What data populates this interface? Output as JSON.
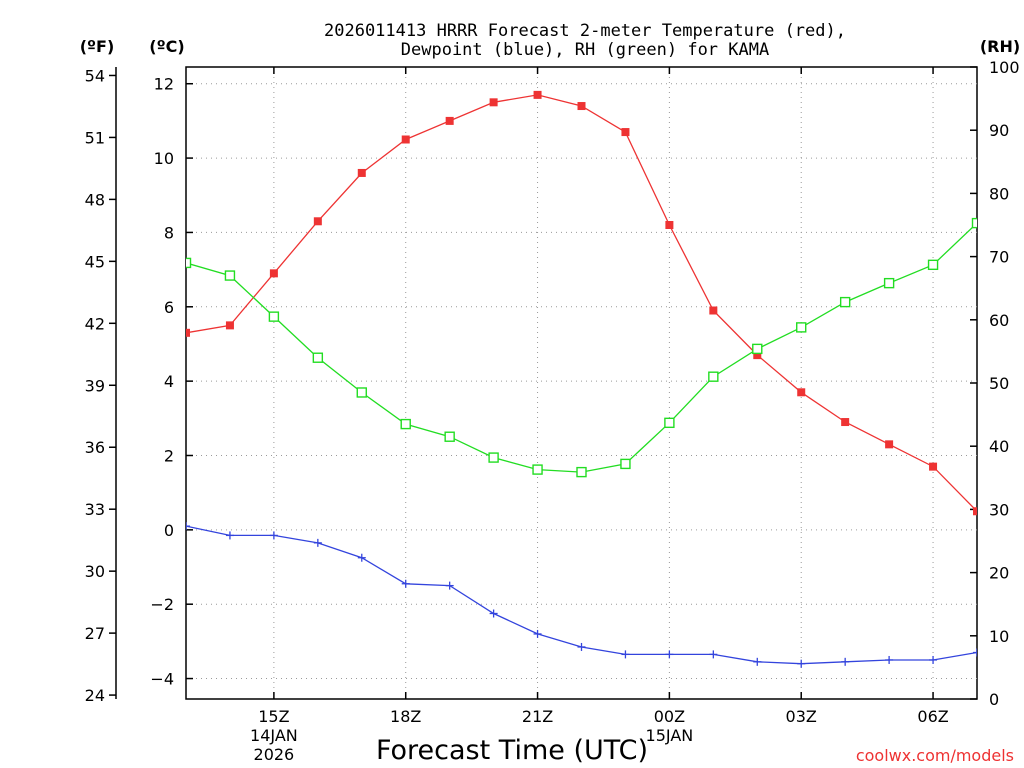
{
  "chart_data": {
    "type": "line",
    "title_line1": "2026011413 HRRR Forecast 2-meter Temperature (red),",
    "title_line2": "Dewpoint (blue), RH (green) for KAMA",
    "xlabel": "Forecast Time (UTC)",
    "left_unit_label": "(ºF)",
    "celsius_unit_label": "(ºC)",
    "rh_unit_label": "(RH)",
    "watermark": "coolwx.com/models",
    "x_hours": [
      13,
      14,
      15,
      16,
      17,
      18,
      19,
      20,
      21,
      22,
      23,
      24,
      25,
      26,
      27,
      28,
      29,
      30,
      31
    ],
    "x_ticks": [
      {
        "hour": 15,
        "label": "15Z",
        "sub1": "14JAN",
        "sub2": "2026"
      },
      {
        "hour": 18,
        "label": "18Z",
        "sub1": "",
        "sub2": ""
      },
      {
        "hour": 21,
        "label": "21Z",
        "sub1": "",
        "sub2": ""
      },
      {
        "hour": 24,
        "label": "00Z",
        "sub1": "15JAN",
        "sub2": ""
      },
      {
        "hour": 27,
        "label": "03Z",
        "sub1": "",
        "sub2": ""
      },
      {
        "hour": 30,
        "label": "06Z",
        "sub1": "",
        "sub2": ""
      }
    ],
    "xlim": [
      13,
      31
    ],
    "ylim_c": [
      -4.55,
      12.45
    ],
    "ylim_rh": [
      0,
      100
    ],
    "y_ticks_c": [
      "12",
      "10",
      "8",
      "6",
      "4",
      "2",
      "0",
      "−2",
      "−4"
    ],
    "y_ticks_c_values": [
      12,
      10,
      8,
      6,
      4,
      2,
      0,
      -2,
      -4
    ],
    "y_ticks_f": [
      "54",
      "51",
      "48",
      "45",
      "42",
      "39",
      "36",
      "33",
      "30",
      "27",
      "24"
    ],
    "y_ticks_f_values": [
      54,
      51,
      48,
      45,
      42,
      39,
      36,
      33,
      30,
      27,
      24
    ],
    "y_ticks_rh": [
      "100",
      "90",
      "80",
      "70",
      "60",
      "50",
      "40",
      "30",
      "20",
      "10",
      "0"
    ],
    "y_ticks_rh_values": [
      100,
      90,
      80,
      70,
      60,
      50,
      40,
      30,
      20,
      10,
      0
    ],
    "series": [
      {
        "name": "Temperature",
        "unit": "C",
        "color": "#ee3333",
        "marker": "filled-square",
        "values": [
          5.3,
          5.5,
          6.9,
          8.3,
          9.6,
          10.5,
          11.0,
          11.5,
          11.7,
          11.4,
          10.7,
          8.2,
          5.9,
          4.7,
          3.7,
          2.9,
          2.3,
          1.7,
          0.5
        ]
      },
      {
        "name": "Dewpoint",
        "unit": "C",
        "color": "#3344dd",
        "marker": "plus",
        "values": [
          0.1,
          -0.15,
          -0.15,
          -0.35,
          -0.75,
          -1.45,
          -1.5,
          -2.25,
          -2.8,
          -3.15,
          -3.35,
          -3.35,
          -3.35,
          -3.55,
          -3.6,
          -3.55,
          -3.5,
          -3.5,
          -3.3
        ]
      },
      {
        "name": "RH",
        "unit": "%",
        "color": "#22dd22",
        "marker": "open-square",
        "values": [
          69,
          67,
          60.5,
          54,
          48.5,
          43.5,
          41.5,
          38.2,
          36.3,
          35.9,
          37.2,
          43.7,
          51,
          55.4,
          58.8,
          62.8,
          65.8,
          68.7,
          75.3
        ]
      }
    ]
  }
}
